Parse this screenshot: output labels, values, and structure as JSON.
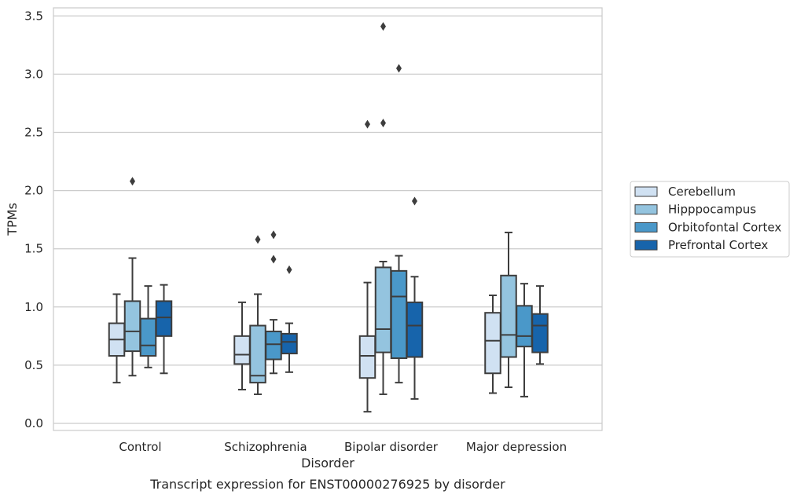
{
  "chart_data": {
    "type": "box",
    "title": "",
    "caption": "Transcript expression for ENST00000276925 by disorder",
    "xlabel": "Disorder",
    "ylabel": "TPMs",
    "ylim": [
      -0.05,
      3.58
    ],
    "yticks": [
      0.0,
      0.5,
      1.0,
      1.5,
      2.0,
      2.5,
      3.0,
      3.5
    ],
    "ytick_labels": [
      "0.0",
      "0.5",
      "1.0",
      "1.5",
      "2.0",
      "2.5",
      "3.0",
      "3.5"
    ],
    "grid": "horizontal",
    "legend_position": "right",
    "categories": [
      "Control",
      "Schizophrenia",
      "Bipolar disorder",
      "Major depression"
    ],
    "series": [
      {
        "name": "Cerebellum",
        "color": "#d0e1f2",
        "boxes": [
          {
            "whislo": 0.35,
            "q1": 0.58,
            "med": 0.72,
            "q3": 0.86,
            "whishi": 1.11,
            "fliers": []
          },
          {
            "whislo": 0.29,
            "q1": 0.51,
            "med": 0.59,
            "q3": 0.75,
            "whishi": 1.04,
            "fliers": []
          },
          {
            "whislo": 0.1,
            "q1": 0.39,
            "med": 0.58,
            "q3": 0.75,
            "whishi": 1.21,
            "fliers": [
              2.57
            ]
          },
          {
            "whislo": 0.26,
            "q1": 0.43,
            "med": 0.71,
            "q3": 0.95,
            "whishi": 1.1,
            "fliers": []
          }
        ]
      },
      {
        "name": "Hipppocampus",
        "color": "#94c4df",
        "boxes": [
          {
            "whislo": 0.41,
            "q1": 0.62,
            "med": 0.79,
            "q3": 1.05,
            "whishi": 1.42,
            "fliers": [
              2.08
            ]
          },
          {
            "whislo": 0.25,
            "q1": 0.35,
            "med": 0.41,
            "q3": 0.84,
            "whishi": 1.11,
            "fliers": [
              1.58
            ]
          },
          {
            "whislo": 0.25,
            "q1": 0.61,
            "med": 0.81,
            "q3": 1.34,
            "whishi": 1.39,
            "fliers": [
              2.58,
              3.41
            ]
          },
          {
            "whislo": 0.31,
            "q1": 0.57,
            "med": 0.76,
            "q3": 1.27,
            "whishi": 1.64,
            "fliers": []
          }
        ]
      },
      {
        "name": "Orbitofontal Cortex",
        "color": "#4a98c9",
        "boxes": [
          {
            "whislo": 0.48,
            "q1": 0.58,
            "med": 0.67,
            "q3": 0.9,
            "whishi": 1.18,
            "fliers": []
          },
          {
            "whislo": 0.43,
            "q1": 0.55,
            "med": 0.68,
            "q3": 0.79,
            "whishi": 0.89,
            "fliers": [
              1.41,
              1.62
            ]
          },
          {
            "whislo": 0.35,
            "q1": 0.56,
            "med": 1.09,
            "q3": 1.31,
            "whishi": 1.44,
            "fliers": [
              3.05
            ]
          },
          {
            "whislo": 0.23,
            "q1": 0.66,
            "med": 0.75,
            "q3": 1.01,
            "whishi": 1.2,
            "fliers": []
          }
        ]
      },
      {
        "name": "Prefrontal Cortex",
        "color": "#1764ab",
        "boxes": [
          {
            "whislo": 0.43,
            "q1": 0.75,
            "med": 0.91,
            "q3": 1.05,
            "whishi": 1.19,
            "fliers": []
          },
          {
            "whislo": 0.44,
            "q1": 0.6,
            "med": 0.7,
            "q3": 0.77,
            "whishi": 0.86,
            "fliers": [
              1.32
            ]
          },
          {
            "whislo": 0.21,
            "q1": 0.57,
            "med": 0.84,
            "q3": 1.04,
            "whishi": 1.26,
            "fliers": [
              1.91
            ]
          },
          {
            "whislo": 0.51,
            "q1": 0.61,
            "med": 0.84,
            "q3": 0.94,
            "whishi": 1.18,
            "fliers": []
          }
        ]
      }
    ]
  }
}
